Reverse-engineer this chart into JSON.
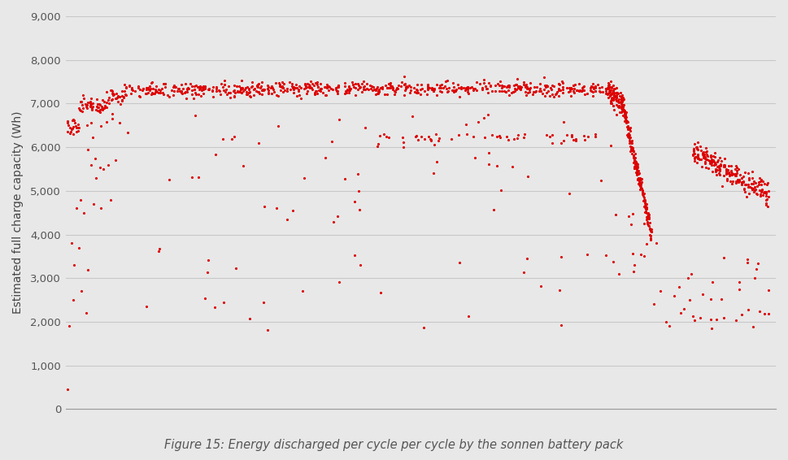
{
  "caption": "Figure 15: Energy discharged per cycle per cycle by the sonnen battery pack",
  "ylabel": "Estimated full charge capacity (Wh)",
  "ylim": [
    0,
    9000
  ],
  "yticks": [
    0,
    1000,
    2000,
    3000,
    4000,
    5000,
    6000,
    7000,
    8000,
    9000
  ],
  "background_color": "#e8e8e8",
  "dot_color": "#dd0000",
  "dot_size": 5,
  "caption_fontsize": 10.5,
  "ylabel_fontsize": 10,
  "seed": 7
}
